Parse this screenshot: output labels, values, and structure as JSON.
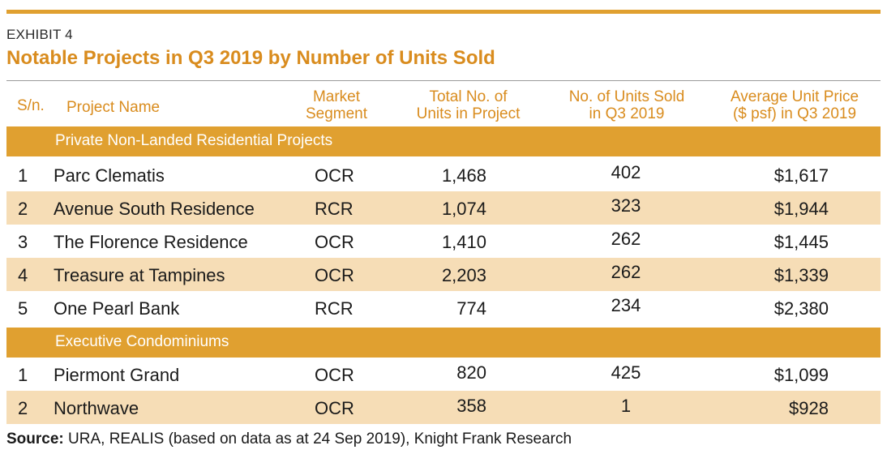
{
  "exhibit_label": "EXHIBIT 4",
  "title": "Notable Projects in Q3 2019 by Number of Units Sold",
  "headers": {
    "sn": "S/n.",
    "project_name": "Project Name",
    "market_segment_l1": "Market",
    "market_segment_l2": "Segment",
    "total_units_l1": "Total No. of",
    "total_units_l2": "Units in Project",
    "units_sold_l1": "No. of Units Sold",
    "units_sold_l2": "in Q3 2019",
    "avg_price_l1": "Average Unit Price",
    "avg_price_l2": "($ psf) in Q3 2019"
  },
  "sections": [
    {
      "label": "Private Non-Landed Residential Projects",
      "rows": [
        {
          "sn": "1",
          "name": "Parc Clematis",
          "segment": "OCR",
          "total_units": "1,468",
          "units_sold": "402",
          "avg_price": "$1,617"
        },
        {
          "sn": "2",
          "name": "Avenue South Residence",
          "segment": "RCR",
          "total_units": "1,074",
          "units_sold": "323",
          "avg_price": "$1,944"
        },
        {
          "sn": "3",
          "name": "The Florence Residence",
          "segment": "OCR",
          "total_units": "1,410",
          "units_sold": "262",
          "avg_price": "$1,445"
        },
        {
          "sn": "4",
          "name": "Treasure at Tampines",
          "segment": "OCR",
          "total_units": "2,203",
          "units_sold": "262",
          "avg_price": "$1,339"
        },
        {
          "sn": "5",
          "name": "One Pearl Bank",
          "segment": "RCR",
          "total_units": "774",
          "units_sold": "234",
          "avg_price": "$2,380"
        }
      ]
    },
    {
      "label": "Executive Condominiums",
      "rows": [
        {
          "sn": "1",
          "name": "Piermont Grand",
          "segment": "OCR",
          "total_units": "820",
          "units_sold": "425",
          "avg_price": "$1,099"
        },
        {
          "sn": "2",
          "name": "Northwave",
          "segment": "OCR",
          "total_units": "358",
          "units_sold": "1",
          "avg_price": "$928"
        }
      ]
    }
  ],
  "source": {
    "label": "Source:",
    "text": " URA, REALIS (based on data as at 24 Sep 2019), Knight Frank Research"
  },
  "colors": {
    "accent": "#E0A030",
    "title": "#D98C1E",
    "row_shade": "#F6DDB6"
  }
}
